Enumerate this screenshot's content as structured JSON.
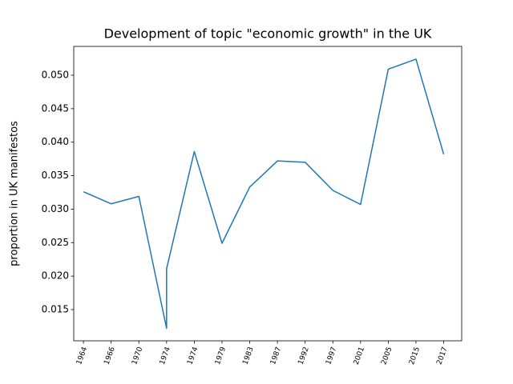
{
  "chart_data": {
    "type": "line",
    "title": "Development of topic \"economic growth\" in the UK",
    "ylabel": "proportion in UK manifestos",
    "x": [
      0,
      1,
      2,
      3,
      3,
      4,
      5,
      6,
      7,
      8,
      9,
      10,
      11,
      12,
      13
    ],
    "series": [
      {
        "name": "economic growth",
        "color": "#1f77b4",
        "values": [
          0.0326,
          0.0308,
          0.0319,
          0.0122,
          0.0211,
          0.0386,
          0.0249,
          0.0333,
          0.0372,
          0.037,
          0.0328,
          0.0307,
          0.0509,
          0.0524,
          0.0382
        ]
      }
    ],
    "xlim": [
      -0.35,
      13.65
    ],
    "xticks": [
      {
        "value": 0,
        "label": "1964"
      },
      {
        "value": 1,
        "label": "1966"
      },
      {
        "value": 2,
        "label": "1970"
      },
      {
        "value": 3,
        "label": "1974"
      },
      {
        "value": 4,
        "label": "1974"
      },
      {
        "value": 5,
        "label": "1979"
      },
      {
        "value": 6,
        "label": "1983"
      },
      {
        "value": 7,
        "label": "1987"
      },
      {
        "value": 8,
        "label": "1992"
      },
      {
        "value": 9,
        "label": "1997"
      },
      {
        "value": 10,
        "label": "2001"
      },
      {
        "value": 11,
        "label": "2005"
      },
      {
        "value": 12,
        "label": "2015"
      },
      {
        "value": 13,
        "label": "2017"
      }
    ],
    "ylim": [
      0.01034,
      0.0543
    ],
    "yticks": [
      {
        "value": 0.015,
        "label": "0.015"
      },
      {
        "value": 0.02,
        "label": "0.020"
      },
      {
        "value": 0.025,
        "label": "0.025"
      },
      {
        "value": 0.03,
        "label": "0.030"
      },
      {
        "value": 0.035,
        "label": "0.035"
      },
      {
        "value": 0.04,
        "label": "0.040"
      },
      {
        "value": 0.045,
        "label": "0.045"
      },
      {
        "value": 0.05,
        "label": "0.050"
      }
    ],
    "grid": false
  }
}
